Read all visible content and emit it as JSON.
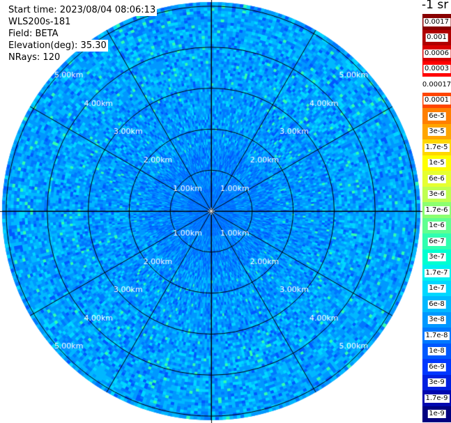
{
  "header": {
    "start_time": "Start time: 2023/08/04 08:06:13",
    "instrument": "WLS200s-181",
    "field": "Field: BETA",
    "elevation": "Elevation(deg): 35.30",
    "nrays": "NRays: 120"
  },
  "chart_data": {
    "type": "heatmap",
    "projection": "polar",
    "range_rings": [
      "1.00km",
      "2.00km",
      "3.00km",
      "4.00km",
      "5.00km"
    ],
    "ring_values_km": [
      1,
      2,
      3,
      4,
      5
    ],
    "max_range_km": 5.1,
    "spokes_deg": [
      0,
      30,
      60,
      90,
      120,
      150,
      180,
      210,
      240,
      270,
      300,
      330
    ],
    "colorbar": {
      "unit": "-1 sr",
      "entries": [
        {
          "label": "0.0017",
          "color": "#880000"
        },
        {
          "label": "0.001",
          "color": "#b00000"
        },
        {
          "label": "0.0006",
          "color": "#d80000"
        },
        {
          "label": "0.0003",
          "color": "#ff0000"
        },
        {
          "label": "0.00017",
          "color": "#ffffff"
        },
        {
          "label": "0.0001",
          "color": "#ff4500"
        },
        {
          "label": "6e-5",
          "color": "#ff7f00"
        },
        {
          "label": "3e-5",
          "color": "#ffa500"
        },
        {
          "label": "1.7e-5",
          "color": "#ffd700"
        },
        {
          "label": "1e-5",
          "color": "#ffff00"
        },
        {
          "label": "6e-6",
          "color": "#e6ff30"
        },
        {
          "label": "3e-6",
          "color": "#bfff50"
        },
        {
          "label": "1.7e-6",
          "color": "#8cff70"
        },
        {
          "label": "1e-6",
          "color": "#60ff90"
        },
        {
          "label": "6e-7",
          "color": "#30ffb0"
        },
        {
          "label": "3e-7",
          "color": "#00ffd0"
        },
        {
          "label": "1.7e-7",
          "color": "#00f0f0"
        },
        {
          "label": "1e-7",
          "color": "#00d8ff"
        },
        {
          "label": "6e-8",
          "color": "#00b8ff"
        },
        {
          "label": "3e-8",
          "color": "#0098ff"
        },
        {
          "label": "1.7e-8",
          "color": "#0078ff"
        },
        {
          "label": "1e-8",
          "color": "#0058ff"
        },
        {
          "label": "6e-9",
          "color": "#0038ff"
        },
        {
          "label": "3e-9",
          "color": "#0020e0"
        },
        {
          "label": "1.7e-9",
          "color": "#0008b0"
        },
        {
          "label": "1e-9",
          "color": "#000080"
        }
      ]
    },
    "field_colors": [
      "#0058ff",
      "#0078ff",
      "#0098ff",
      "#00b8ff",
      "#00d8ff",
      "#30ffb0"
    ],
    "grid": true
  }
}
